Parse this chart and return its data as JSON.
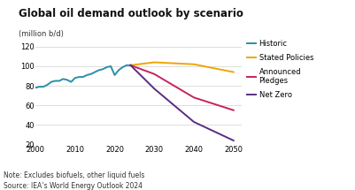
{
  "title": "Global oil demand outlook by scenario",
  "ylabel": "(million b/d)",
  "note": "Note: Excludes biofuels, other liquid fuels\nSource: IEA’s World Energy Outlook 2024",
  "ylim": [
    20,
    125
  ],
  "yticks": [
    20,
    40,
    60,
    80,
    100,
    120
  ],
  "xlim": [
    2000,
    2052
  ],
  "xticks": [
    2000,
    2010,
    2020,
    2030,
    2040,
    2050
  ],
  "background_color": "#ffffff",
  "grid_color": "#d0d0d0",
  "historic": {
    "x": [
      2000,
      2001,
      2002,
      2003,
      2004,
      2005,
      2006,
      2007,
      2008,
      2009,
      2010,
      2011,
      2012,
      2013,
      2014,
      2015,
      2016,
      2017,
      2018,
      2019,
      2020,
      2021,
      2022,
      2023,
      2024
    ],
    "y": [
      78,
      79,
      79,
      81,
      84,
      85,
      85,
      87,
      86,
      84,
      88,
      89,
      89,
      91,
      92,
      94,
      96,
      97,
      99,
      100,
      91,
      96,
      99,
      101,
      101
    ],
    "color": "#2a8fa8",
    "label": "Historic"
  },
  "stated_policies": {
    "x": [
      2024,
      2030,
      2040,
      2050
    ],
    "y": [
      101,
      104,
      102,
      94
    ],
    "color": "#f0a500",
    "label": "Stated Policies"
  },
  "announced_pledges": {
    "x": [
      2024,
      2030,
      2040,
      2050
    ],
    "y": [
      101,
      92,
      68,
      55
    ],
    "color": "#c4245e",
    "label": "Announced\nPledges"
  },
  "net_zero": {
    "x": [
      2024,
      2030,
      2040,
      2050
    ],
    "y": [
      101,
      77,
      43,
      24
    ],
    "color": "#5a2d82",
    "label": "Net Zero"
  },
  "legend_labels": [
    "Historic",
    "Stated Policies",
    "Announced\nPledges",
    "Net Zero"
  ]
}
